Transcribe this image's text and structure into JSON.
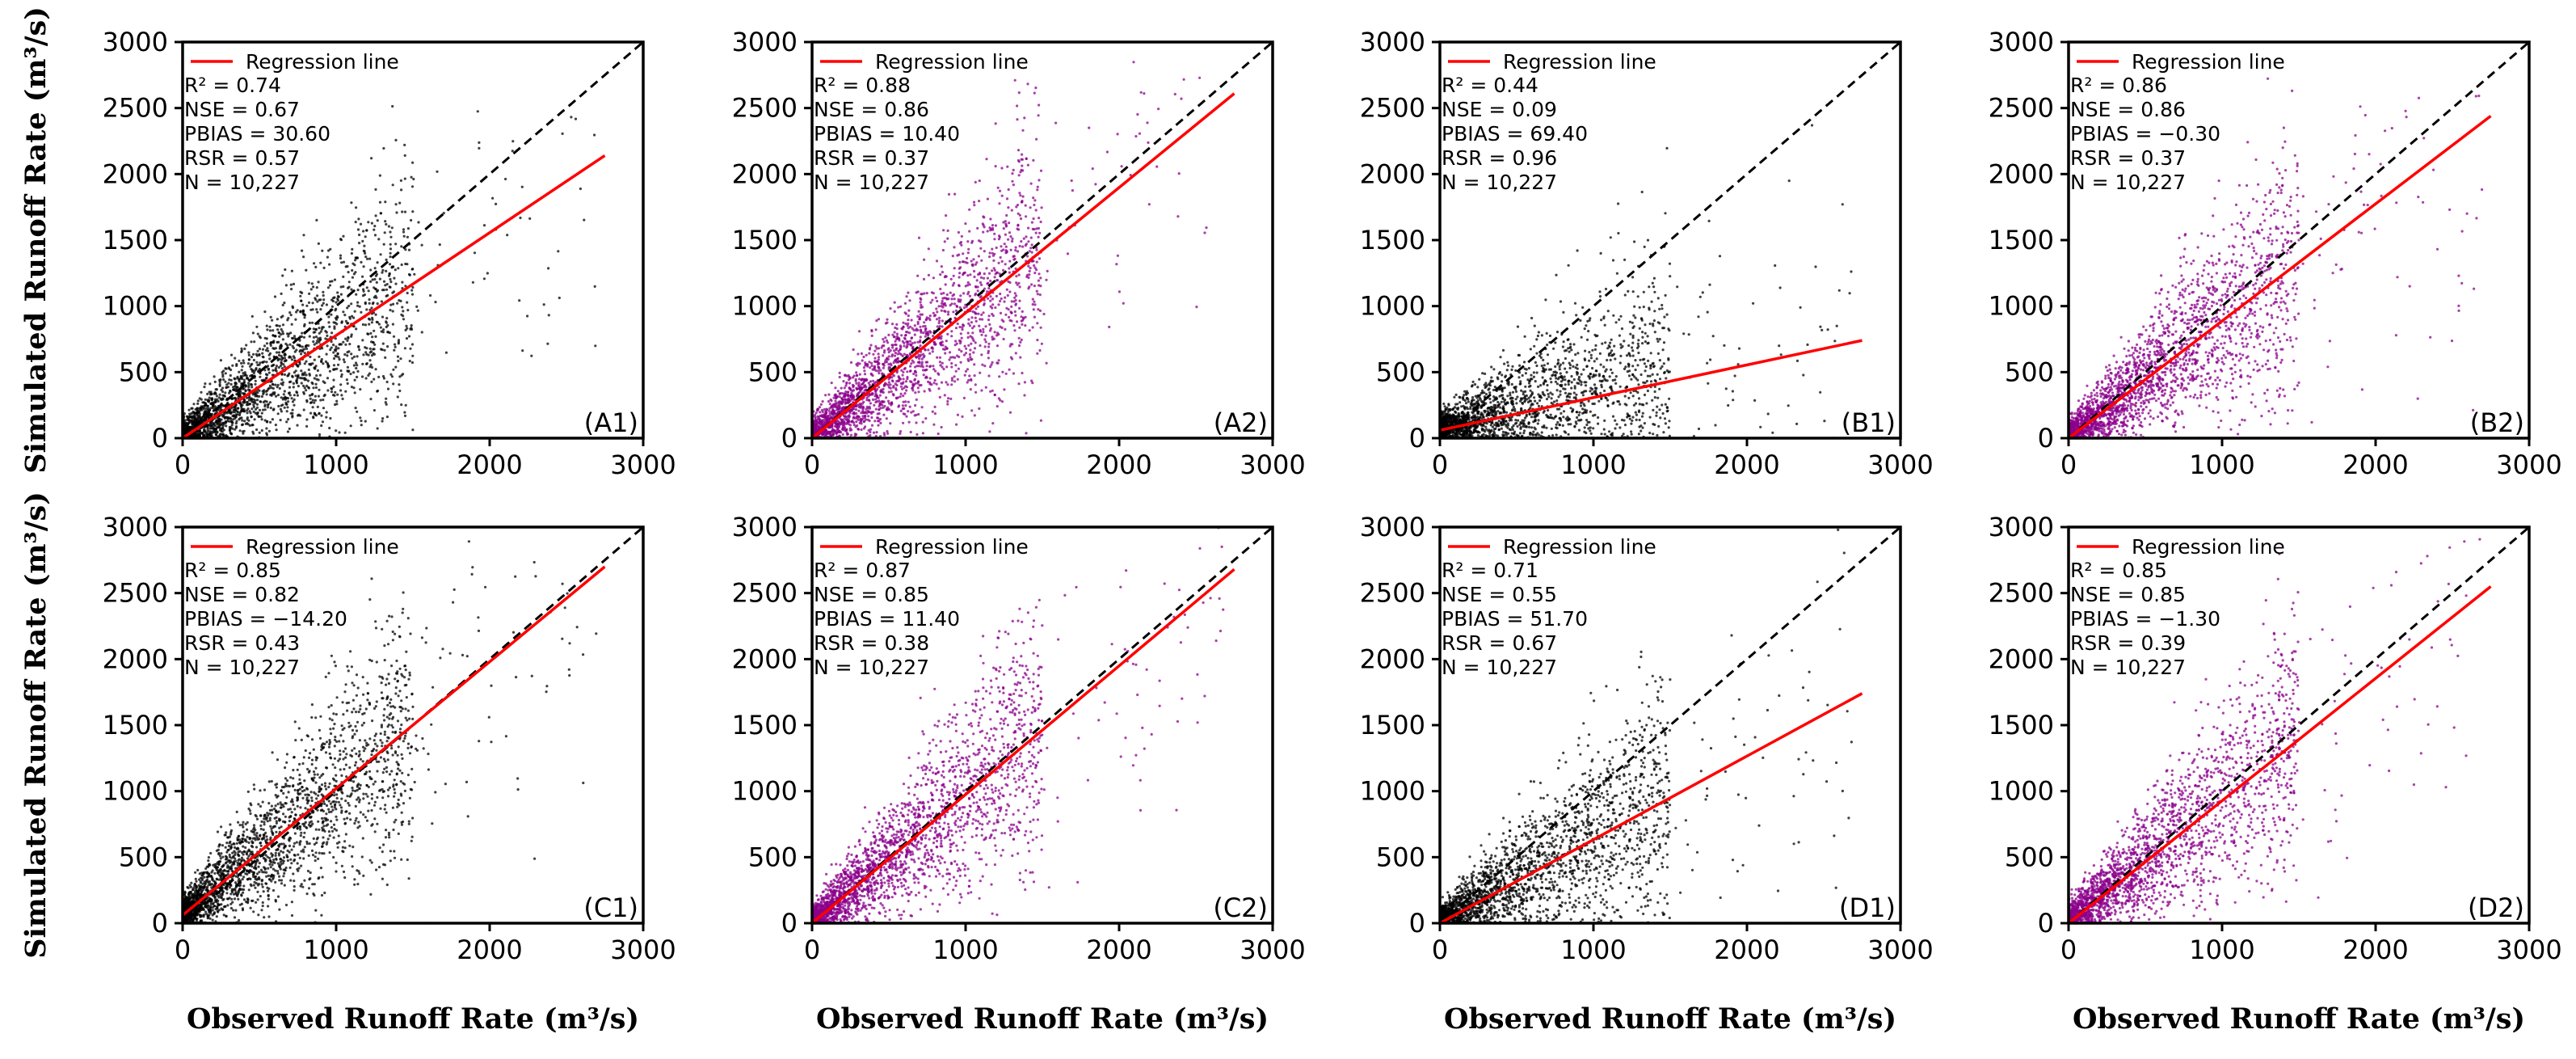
{
  "figure": {
    "xlabel": "Observed Runoff Rate (m³/s)",
    "ylabel": "Simulated Runoff Rate (m³/s)",
    "legend_label": "Regression line",
    "stat_labels": {
      "r2": "R² = ",
      "nse": "NSE = ",
      "pbias": "PBIAS = ",
      "rsr": "RSR = ",
      "n": "N = "
    },
    "colors": {
      "black_points": "#000000",
      "purple_points": "#8b008b",
      "regression": "#ff0000",
      "identity": "#000000"
    }
  },
  "chart_data": [
    {
      "type": "scatter",
      "panel": "(A1)",
      "point_color": "black",
      "xlim": [
        0,
        3000
      ],
      "ylim": [
        0,
        3000
      ],
      "xticks": [
        "0",
        "1000",
        "2000",
        "3000"
      ],
      "yticks": [
        "0",
        "500",
        "1000",
        "1500",
        "2000",
        "2500",
        "3000"
      ],
      "identity_line": [
        [
          0,
          0
        ],
        [
          3000,
          3000
        ]
      ],
      "regression": {
        "x": [
          0,
          2750
        ],
        "y": [
          0,
          2140
        ]
      },
      "stats": {
        "r2": "0.74",
        "nse": "0.67",
        "pbias": "30.60",
        "rsr": "0.57",
        "n": "10,227"
      }
    },
    {
      "type": "scatter",
      "panel": "(A2)",
      "point_color": "purple",
      "xlim": [
        0,
        3000
      ],
      "ylim": [
        0,
        3000
      ],
      "xticks": [
        "0",
        "1000",
        "2000",
        "3000"
      ],
      "yticks": [
        "0",
        "500",
        "1000",
        "1500",
        "2000",
        "2500",
        "3000"
      ],
      "identity_line": [
        [
          0,
          0
        ],
        [
          3000,
          3000
        ]
      ],
      "regression": {
        "x": [
          0,
          2750
        ],
        "y": [
          0,
          2610
        ]
      },
      "stats": {
        "r2": "0.88",
        "nse": "0.86",
        "pbias": "10.40",
        "rsr": "0.37",
        "n": "10,227"
      }
    },
    {
      "type": "scatter",
      "panel": "(B1)",
      "point_color": "black",
      "xlim": [
        0,
        3000
      ],
      "ylim": [
        0,
        3000
      ],
      "xticks": [
        "0",
        "1000",
        "2000",
        "3000"
      ],
      "yticks": [
        "0",
        "500",
        "1000",
        "1500",
        "2000",
        "2500",
        "3000"
      ],
      "identity_line": [
        [
          0,
          0
        ],
        [
          3000,
          3000
        ]
      ],
      "regression": {
        "x": [
          0,
          2750
        ],
        "y": [
          60,
          740
        ]
      },
      "stats": {
        "r2": "0.44",
        "nse": "0.09",
        "pbias": "69.40",
        "rsr": "0.96",
        "n": "10,227"
      }
    },
    {
      "type": "scatter",
      "panel": "(B2)",
      "point_color": "purple",
      "xlim": [
        0,
        3000
      ],
      "ylim": [
        0,
        3000
      ],
      "xticks": [
        "0",
        "1000",
        "2000",
        "3000"
      ],
      "yticks": [
        "0",
        "500",
        "1000",
        "1500",
        "2000",
        "2500",
        "3000"
      ],
      "identity_line": [
        [
          0,
          0
        ],
        [
          3000,
          3000
        ]
      ],
      "regression": {
        "x": [
          0,
          2750
        ],
        "y": [
          0,
          2440
        ]
      },
      "stats": {
        "r2": "0.86",
        "nse": "0.86",
        "pbias": "−0.30",
        "rsr": "0.37",
        "n": "10,227"
      }
    },
    {
      "type": "scatter",
      "panel": "(C1)",
      "point_color": "black",
      "xlim": [
        0,
        3000
      ],
      "ylim": [
        0,
        3000
      ],
      "xticks": [
        "0",
        "1000",
        "2000",
        "3000"
      ],
      "yticks": [
        "0",
        "500",
        "1000",
        "1500",
        "2000",
        "2500",
        "3000"
      ],
      "identity_line": [
        [
          0,
          0
        ],
        [
          3000,
          3000
        ]
      ],
      "regression": {
        "x": [
          0,
          2750
        ],
        "y": [
          60,
          2700
        ]
      },
      "stats": {
        "r2": "0.85",
        "nse": "0.82",
        "pbias": "−14.20",
        "rsr": "0.43",
        "n": "10,227"
      }
    },
    {
      "type": "scatter",
      "panel": "(C2)",
      "point_color": "purple",
      "xlim": [
        0,
        3000
      ],
      "ylim": [
        0,
        3000
      ],
      "xticks": [
        "0",
        "1000",
        "2000",
        "3000"
      ],
      "yticks": [
        "0",
        "500",
        "1000",
        "1500",
        "2000",
        "2500",
        "3000"
      ],
      "identity_line": [
        [
          0,
          0
        ],
        [
          3000,
          3000
        ]
      ],
      "regression": {
        "x": [
          0,
          2750
        ],
        "y": [
          0,
          2680
        ]
      },
      "stats": {
        "r2": "0.87",
        "nse": "0.85",
        "pbias": "11.40",
        "rsr": "0.38",
        "n": "10,227"
      }
    },
    {
      "type": "scatter",
      "panel": "(D1)",
      "point_color": "black",
      "xlim": [
        0,
        3000
      ],
      "ylim": [
        0,
        3000
      ],
      "xticks": [
        "0",
        "1000",
        "2000",
        "3000"
      ],
      "yticks": [
        "0",
        "500",
        "1000",
        "1500",
        "2000",
        "2500",
        "3000"
      ],
      "identity_line": [
        [
          0,
          0
        ],
        [
          3000,
          3000
        ]
      ],
      "regression": {
        "x": [
          0,
          2750
        ],
        "y": [
          0,
          1740
        ]
      },
      "stats": {
        "r2": "0.71",
        "nse": "0.55",
        "pbias": "51.70",
        "rsr": "0.67",
        "n": "10,227"
      }
    },
    {
      "type": "scatter",
      "panel": "(D2)",
      "point_color": "purple",
      "xlim": [
        0,
        3000
      ],
      "ylim": [
        0,
        3000
      ],
      "xticks": [
        "0",
        "1000",
        "2000",
        "3000"
      ],
      "yticks": [
        "0",
        "500",
        "1000",
        "1500",
        "2000",
        "2500",
        "3000"
      ],
      "identity_line": [
        [
          0,
          0
        ],
        [
          3000,
          3000
        ]
      ],
      "regression": {
        "x": [
          0,
          2750
        ],
        "y": [
          0,
          2550
        ]
      },
      "stats": {
        "r2": "0.85",
        "nse": "0.85",
        "pbias": "−1.30",
        "rsr": "0.39",
        "n": "10,227"
      }
    }
  ]
}
